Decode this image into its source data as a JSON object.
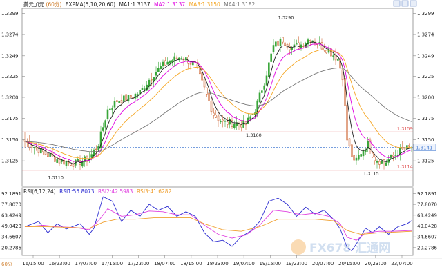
{
  "header": {
    "symbol": "美元加元",
    "period": "(60分)",
    "indicator": "EXPMA(5,10,20,60)",
    "ma1": "MA1:1.3137",
    "ma2": "MA2:1.3137",
    "ma3": "MA3:1.3150",
    "ma4": "MA4:1.3182"
  },
  "rsi_header": {
    "name": "RSI(6,12,24)",
    "rsi1": "RSI1:55.8073",
    "rsi2": "RSI2:42.5983",
    "rsi3": "RSI3:41.6282"
  },
  "footer": {
    "period_label": "60分"
  },
  "watermark": "FX678 汇通网",
  "colors": {
    "up": "#3aa63a",
    "down": "#d06a3a",
    "ma1": "#202020",
    "ma2": "#e000e0",
    "ma3": "#f5a623",
    "ma4": "#777777",
    "rsi1": "#2a2ad0",
    "rsi2": "#e040e0",
    "rsi3": "#f0a030",
    "hline": "#e05050",
    "current": "#4a7fd4"
  },
  "chart_data": [
    {
      "type": "candlestick",
      "ylim": [
        1.3095,
        1.3305
      ],
      "y_ticks": [
        "1.3299",
        "1.3274",
        "1.3249",
        "1.3225",
        "1.3200",
        "1.3175",
        "1.3150",
        "1.3125"
      ],
      "x_ticks": [
        "16/15:00",
        "16/23:00",
        "17/07:00",
        "17/15:00",
        "17/23:00",
        "18/07:00",
        "18/15:00",
        "18/23:00",
        "19/07:00",
        "19/15:00",
        "19/23:00",
        "20/07:00",
        "20/15:00",
        "20/23:00",
        "23/07:00"
      ],
      "horizontal_lines": [
        {
          "label": "1.3159",
          "value": 1.3159
        },
        {
          "label": "1.3114",
          "value": 1.3114
        }
      ],
      "current_price": {
        "label": "1.3141",
        "value": 1.3141
      },
      "annotations": [
        {
          "text": "1.3110",
          "x_index": 10,
          "value": 1.311
        },
        {
          "text": "1.3290",
          "x_index": 110,
          "value": 1.329
        },
        {
          "text": "1.3160",
          "x_index": 96,
          "value": 1.316
        },
        {
          "text": "1.3115",
          "x_index": 147,
          "value": 1.3115
        }
      ],
      "key_points": [
        [
          0,
          1.3148
        ],
        [
          8,
          1.3135
        ],
        [
          15,
          1.3125
        ],
        [
          22,
          1.3122
        ],
        [
          28,
          1.3128
        ],
        [
          32,
          1.3145
        ],
        [
          36,
          1.3185
        ],
        [
          40,
          1.3196
        ],
        [
          46,
          1.32
        ],
        [
          50,
          1.3206
        ],
        [
          56,
          1.3228
        ],
        [
          62,
          1.3242
        ],
        [
          68,
          1.3248
        ],
        [
          74,
          1.3238
        ],
        [
          78,
          1.321
        ],
        [
          82,
          1.318
        ],
        [
          86,
          1.317
        ],
        [
          90,
          1.317
        ],
        [
          96,
          1.3168
        ],
        [
          100,
          1.3185
        ],
        [
          104,
          1.3218
        ],
        [
          108,
          1.326
        ],
        [
          112,
          1.3268
        ],
        [
          116,
          1.3258
        ],
        [
          120,
          1.3262
        ],
        [
          124,
          1.327
        ],
        [
          128,
          1.3262
        ],
        [
          132,
          1.3255
        ],
        [
          136,
          1.3245
        ],
        [
          138,
          1.3225
        ],
        [
          140,
          1.315
        ],
        [
          143,
          1.3122
        ],
        [
          146,
          1.3135
        ],
        [
          149,
          1.3145
        ],
        [
          152,
          1.3128
        ],
        [
          156,
          1.3122
        ],
        [
          159,
          1.3128
        ],
        [
          162,
          1.3135
        ],
        [
          165,
          1.3139
        ],
        [
          168,
          1.3141
        ]
      ],
      "candle_count": 169
    },
    {
      "type": "line",
      "name": "RSI",
      "ylim": [
        10,
        100
      ],
      "y_ticks": [
        "92.1891",
        "77.8070",
        "63.4249",
        "49.0428",
        "34.6607",
        "20.2786"
      ],
      "series": [
        {
          "name": "RSI1",
          "points": [
            [
              0,
              48
            ],
            [
              6,
              55
            ],
            [
              10,
              40
            ],
            [
              14,
              52
            ],
            [
              18,
              45
            ],
            [
              24,
              52
            ],
            [
              28,
              38
            ],
            [
              30,
              46
            ],
            [
              34,
              88
            ],
            [
              38,
              82
            ],
            [
              42,
              55
            ],
            [
              46,
              70
            ],
            [
              50,
              62
            ],
            [
              54,
              78
            ],
            [
              58,
              70
            ],
            [
              62,
              75
            ],
            [
              66,
              62
            ],
            [
              70,
              68
            ],
            [
              74,
              62
            ],
            [
              78,
              40
            ],
            [
              82,
              28
            ],
            [
              86,
              30
            ],
            [
              90,
              22
            ],
            [
              94,
              35
            ],
            [
              98,
              42
            ],
            [
              102,
              55
            ],
            [
              106,
              82
            ],
            [
              110,
              86
            ],
            [
              114,
              78
            ],
            [
              118,
              62
            ],
            [
              122,
              74
            ],
            [
              126,
              65
            ],
            [
              130,
              70
            ],
            [
              134,
              58
            ],
            [
              137,
              45
            ],
            [
              140,
              20
            ],
            [
              142,
              16
            ],
            [
              145,
              30
            ],
            [
              148,
              46
            ],
            [
              151,
              40
            ],
            [
              154,
              48
            ],
            [
              158,
              38
            ],
            [
              162,
              48
            ],
            [
              166,
              52
            ],
            [
              168,
              56
            ]
          ]
        },
        {
          "name": "RSI2",
          "points": [
            [
              0,
              48
            ],
            [
              8,
              50
            ],
            [
              14,
              48
            ],
            [
              22,
              47
            ],
            [
              28,
              44
            ],
            [
              32,
              56
            ],
            [
              36,
              72
            ],
            [
              42,
              62
            ],
            [
              48,
              64
            ],
            [
              54,
              69
            ],
            [
              60,
              68
            ],
            [
              66,
              64
            ],
            [
              72,
              64
            ],
            [
              78,
              50
            ],
            [
              84,
              38
            ],
            [
              90,
              33
            ],
            [
              96,
              37
            ],
            [
              102,
              50
            ],
            [
              108,
              70
            ],
            [
              114,
              68
            ],
            [
              120,
              64
            ],
            [
              126,
              66
            ],
            [
              132,
              62
            ],
            [
              137,
              52
            ],
            [
              140,
              34
            ],
            [
              144,
              30
            ],
            [
              148,
              40
            ],
            [
              154,
              42
            ],
            [
              160,
              42
            ],
            [
              168,
              43
            ]
          ]
        },
        {
          "name": "RSI3",
          "points": [
            [
              0,
              48
            ],
            [
              10,
              48
            ],
            [
              20,
              47
            ],
            [
              28,
              46
            ],
            [
              34,
              54
            ],
            [
              40,
              58
            ],
            [
              48,
              58
            ],
            [
              56,
              60
            ],
            [
              64,
              60
            ],
            [
              72,
              60
            ],
            [
              78,
              52
            ],
            [
              86,
              44
            ],
            [
              94,
              42
            ],
            [
              102,
              48
            ],
            [
              110,
              58
            ],
            [
              118,
              58
            ],
            [
              126,
              58
            ],
            [
              134,
              56
            ],
            [
              140,
              43
            ],
            [
              146,
              38
            ],
            [
              154,
              40
            ],
            [
              162,
              41
            ],
            [
              168,
              42
            ]
          ]
        }
      ]
    }
  ]
}
